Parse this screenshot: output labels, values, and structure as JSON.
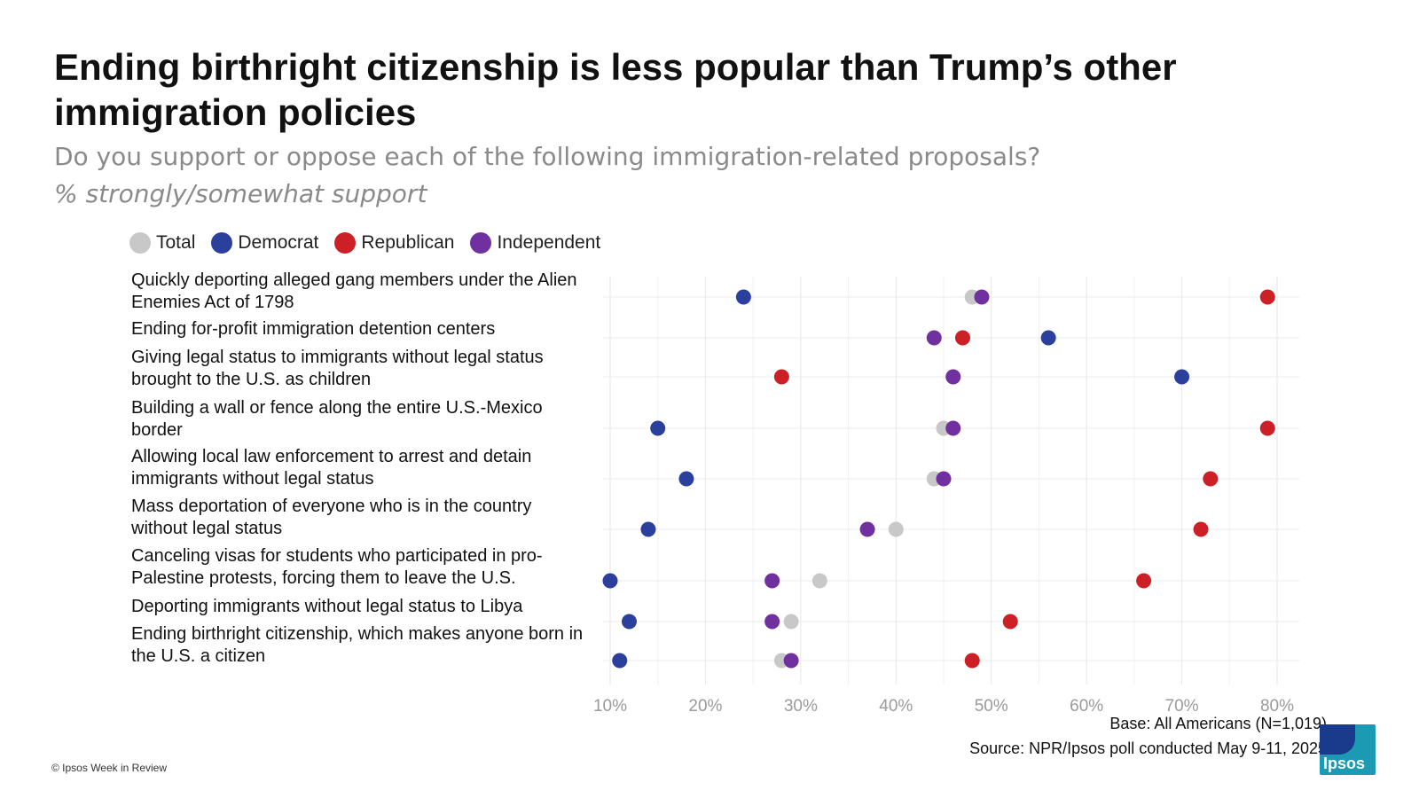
{
  "header": {
    "title": "Ending birthright citizenship is less popular than Trump’s other immigration policies",
    "subtitle": "Do you support or oppose each of the following immigration-related proposals?",
    "subtitle2": "% strongly/somewhat support"
  },
  "legend": [
    {
      "label": "Total",
      "color": "#c8c8c8"
    },
    {
      "label": "Democrat",
      "color": "#2b3f9c"
    },
    {
      "label": "Republican",
      "color": "#cc2026"
    },
    {
      "label": "Independent",
      "color": "#7030a0"
    }
  ],
  "chart_data": {
    "type": "scatter",
    "title": "Ending birthright citizenship is less popular than Trump’s other immigration policies",
    "subtitle": "Do you support or oppose each of the following immigration-related proposals?",
    "categories": [
      "Quickly deporting alleged gang members under the Alien Enemies Act of 1798",
      "Ending for-profit immigration detention centers",
      "Giving legal status to immigrants without legal status brought to the U.S. as children",
      "Building a wall or fence along the entire U.S.-Mexico border",
      "Allowing local law enforcement to arrest and detain immigrants without legal status",
      "Mass deportation of everyone who is in the country without legal status",
      "Canceling visas for students who participated in pro-Palestine protests, forcing them to leave the U.S.",
      "Deporting immigrants without legal status to Libya",
      "Ending birthright citizenship, which makes anyone born in the U.S. a citizen"
    ],
    "series": [
      {
        "name": "Total",
        "color": "#c8c8c8",
        "values": [
          48,
          47,
          46,
          45,
          44,
          40,
          32,
          29,
          28
        ]
      },
      {
        "name": "Democrat",
        "color": "#2b3f9c",
        "values": [
          24,
          56,
          70,
          15,
          18,
          14,
          10,
          12,
          11
        ]
      },
      {
        "name": "Republican",
        "color": "#cc2026",
        "values": [
          79,
          47,
          28,
          79,
          73,
          72,
          66,
          52,
          48
        ]
      },
      {
        "name": "Independent",
        "color": "#7030a0",
        "values": [
          49,
          44,
          46,
          46,
          45,
          37,
          27,
          27,
          29
        ]
      }
    ],
    "x_ticks": [
      "10%",
      "20%",
      "30%",
      "40%",
      "50%",
      "60%",
      "70%",
      "80%"
    ],
    "xlim": [
      10,
      80
    ],
    "grid": true,
    "legend_position": "top-left"
  },
  "footer": {
    "base": "Base: All Americans (N=1,019)",
    "source": "Source: NPR/Ipsos poll conducted May 9-11, 2025",
    "copyright": "© Ipsos Week in Review",
    "logo_text": "Ipsos"
  }
}
